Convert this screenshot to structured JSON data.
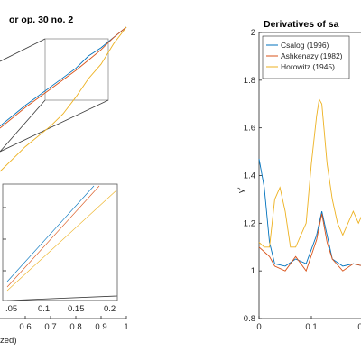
{
  "colors": {
    "csalog": "#0072BD",
    "ashkenazy": "#D95319",
    "horowitz": "#EDB120"
  },
  "chart_data": [
    {
      "type": "line",
      "title": "or op. 30 no. 2",
      "xlabel": "zed)",
      "xlim": [
        0.5,
        1
      ],
      "x_ticks": [
        "0.6",
        "0.7",
        "0.8",
        "0.9",
        "1"
      ],
      "inset": {
        "x_ticks": [
          ".05",
          "0.1",
          "0.15",
          "0.2"
        ]
      },
      "series": [
        {
          "key": "csalog",
          "values": [
            [
              0.5,
              0.52
            ],
            [
              0.6,
              0.62
            ],
            [
              0.7,
              0.71
            ],
            [
              0.8,
              0.8
            ],
            [
              0.85,
              0.86
            ],
            [
              0.9,
              0.9
            ],
            [
              0.95,
              0.95
            ],
            [
              1,
              1
            ]
          ]
        },
        {
          "key": "ashkenazy",
          "values": [
            [
              0.5,
              0.51
            ],
            [
              0.6,
              0.61
            ],
            [
              0.7,
              0.7
            ],
            [
              0.8,
              0.79
            ],
            [
              0.85,
              0.84
            ],
            [
              0.9,
              0.89
            ],
            [
              0.95,
              0.95
            ],
            [
              1,
              1
            ]
          ]
        },
        {
          "key": "horowitz",
          "values": [
            [
              0.5,
              0.3
            ],
            [
              0.6,
              0.42
            ],
            [
              0.7,
              0.52
            ],
            [
              0.75,
              0.58
            ],
            [
              0.8,
              0.66
            ],
            [
              0.85,
              0.75
            ],
            [
              0.9,
              0.82
            ],
            [
              0.95,
              0.92
            ],
            [
              1,
              1
            ]
          ]
        }
      ]
    },
    {
      "type": "line",
      "title": "Derivatives of sa",
      "xlim": [
        0,
        0.43
      ],
      "ylim": [
        0.8,
        2
      ],
      "x_ticks": [
        "0",
        "0.1",
        "0.2",
        "0.3"
      ],
      "y_ticks": [
        "0.8",
        "1",
        "1.2",
        "1.4",
        "1.6",
        "1.8",
        "2"
      ],
      "ylabel": "y'",
      "legend": "top-left",
      "series": [
        {
          "key": "csalog",
          "name": "Csalog (1996)",
          "values": [
            [
              0,
              1.47
            ],
            [
              0.01,
              1.35
            ],
            [
              0.02,
              1.12
            ],
            [
              0.03,
              1.03
            ],
            [
              0.05,
              1.02
            ],
            [
              0.07,
              1.05
            ],
            [
              0.09,
              1.03
            ],
            [
              0.11,
              1.15
            ],
            [
              0.12,
              1.25
            ],
            [
              0.13,
              1.15
            ],
            [
              0.14,
              1.05
            ],
            [
              0.16,
              1.02
            ],
            [
              0.18,
              1.03
            ],
            [
              0.2,
              1.02
            ],
            [
              0.21,
              1.05
            ],
            [
              0.23,
              1.12
            ],
            [
              0.25,
              1.19
            ],
            [
              0.26,
              1.15
            ],
            [
              0.27,
              1.05
            ],
            [
              0.29,
              1.0
            ],
            [
              0.31,
              0.99
            ],
            [
              0.33,
              1.0
            ],
            [
              0.35,
              1.02
            ],
            [
              0.37,
              1.05
            ],
            [
              0.38,
              1.08
            ],
            [
              0.4,
              1.13
            ],
            [
              0.43,
              1.15
            ]
          ]
        },
        {
          "key": "ashkenazy",
          "name": "Ashkenazy (1982)",
          "values": [
            [
              0,
              1.1
            ],
            [
              0.01,
              1.08
            ],
            [
              0.02,
              1.06
            ],
            [
              0.03,
              1.02
            ],
            [
              0.05,
              1.0
            ],
            [
              0.07,
              1.06
            ],
            [
              0.09,
              1.0
            ],
            [
              0.11,
              1.13
            ],
            [
              0.12,
              1.24
            ],
            [
              0.13,
              1.12
            ],
            [
              0.14,
              1.05
            ],
            [
              0.16,
              1.0
            ],
            [
              0.18,
              1.03
            ],
            [
              0.2,
              1.02
            ],
            [
              0.22,
              1.05
            ],
            [
              0.24,
              1.2
            ],
            [
              0.25,
              1.26
            ],
            [
              0.26,
              1.15
            ],
            [
              0.27,
              1.02
            ],
            [
              0.29,
              0.98
            ],
            [
              0.31,
              0.98
            ],
            [
              0.33,
              1.0
            ],
            [
              0.35,
              1.01
            ],
            [
              0.37,
              1.06
            ],
            [
              0.39,
              1.12
            ],
            [
              0.41,
              1.15
            ],
            [
              0.43,
              1.15
            ]
          ]
        },
        {
          "key": "horowitz",
          "name": "Horowitz (1945)",
          "values": [
            [
              0,
              1.12
            ],
            [
              0.01,
              1.1
            ],
            [
              0.02,
              1.1
            ],
            [
              0.03,
              1.3
            ],
            [
              0.04,
              1.35
            ],
            [
              0.05,
              1.25
            ],
            [
              0.06,
              1.1
            ],
            [
              0.07,
              1.1
            ],
            [
              0.08,
              1.15
            ],
            [
              0.09,
              1.2
            ],
            [
              0.1,
              1.45
            ],
            [
              0.11,
              1.65
            ],
            [
              0.115,
              1.72
            ],
            [
              0.12,
              1.7
            ],
            [
              0.13,
              1.45
            ],
            [
              0.14,
              1.3
            ],
            [
              0.15,
              1.2
            ],
            [
              0.16,
              1.15
            ],
            [
              0.17,
              1.2
            ],
            [
              0.18,
              1.25
            ],
            [
              0.19,
              1.2
            ],
            [
              0.2,
              1.25
            ],
            [
              0.21,
              1.45
            ],
            [
              0.22,
              1.6
            ],
            [
              0.23,
              1.5
            ],
            [
              0.24,
              1.3
            ],
            [
              0.25,
              1.2
            ],
            [
              0.26,
              1.22
            ],
            [
              0.27,
              1.4
            ],
            [
              0.28,
              1.3
            ],
            [
              0.29,
              1.15
            ],
            [
              0.3,
              1.1
            ],
            [
              0.31,
              1.1
            ],
            [
              0.32,
              1.1
            ],
            [
              0.33,
              1.1
            ],
            [
              0.34,
              1.15
            ],
            [
              0.35,
              1.2
            ],
            [
              0.37,
              1.3
            ],
            [
              0.39,
              1.4
            ],
            [
              0.41,
              1.45
            ],
            [
              0.43,
              1.45
            ]
          ]
        }
      ]
    }
  ]
}
